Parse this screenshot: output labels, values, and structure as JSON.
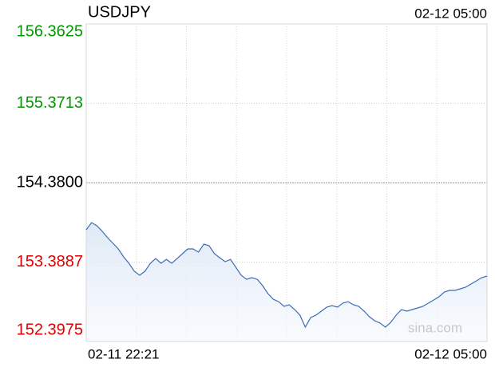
{
  "chart_data": {
    "type": "line",
    "title": "USDJPY",
    "timestamp": "02-12 05:00",
    "x_labels": [
      "02-11 22:21",
      "02-12 05:00"
    ],
    "watermark": "sina.com",
    "ylim": [
      152.3975,
      156.3625
    ],
    "yticks": [
      156.3625,
      155.3713,
      {
        "value": 154.38,
        "label": "154.3800"
      },
      153.3887,
      152.3975
    ],
    "baseline": 154.38,
    "up_color": "#009900",
    "down_color": "#e00000",
    "flat_color": "#000000",
    "grid": true,
    "color": "#3a6db5",
    "values": [
      153.792,
      153.882,
      153.842,
      153.772,
      153.693,
      153.623,
      153.553,
      153.453,
      153.374,
      153.274,
      153.224,
      153.274,
      153.374,
      153.433,
      153.374,
      153.423,
      153.374,
      153.433,
      153.493,
      153.553,
      153.553,
      153.513,
      153.613,
      153.593,
      153.493,
      153.443,
      153.394,
      153.423,
      153.324,
      153.224,
      153.174,
      153.194,
      153.174,
      153.095,
      152.995,
      152.925,
      152.895,
      152.836,
      152.856,
      152.796,
      152.726,
      152.577,
      152.696,
      152.726,
      152.776,
      152.826,
      152.846,
      152.826,
      152.876,
      152.895,
      152.856,
      152.836,
      152.776,
      152.706,
      152.656,
      152.627,
      152.577,
      152.637,
      152.726,
      152.796,
      152.776,
      152.796,
      152.816,
      152.836,
      152.876,
      152.915,
      152.955,
      153.015,
      153.035,
      153.035,
      153.055,
      153.075,
      153.115,
      153.154,
      153.194,
      153.214
    ]
  }
}
